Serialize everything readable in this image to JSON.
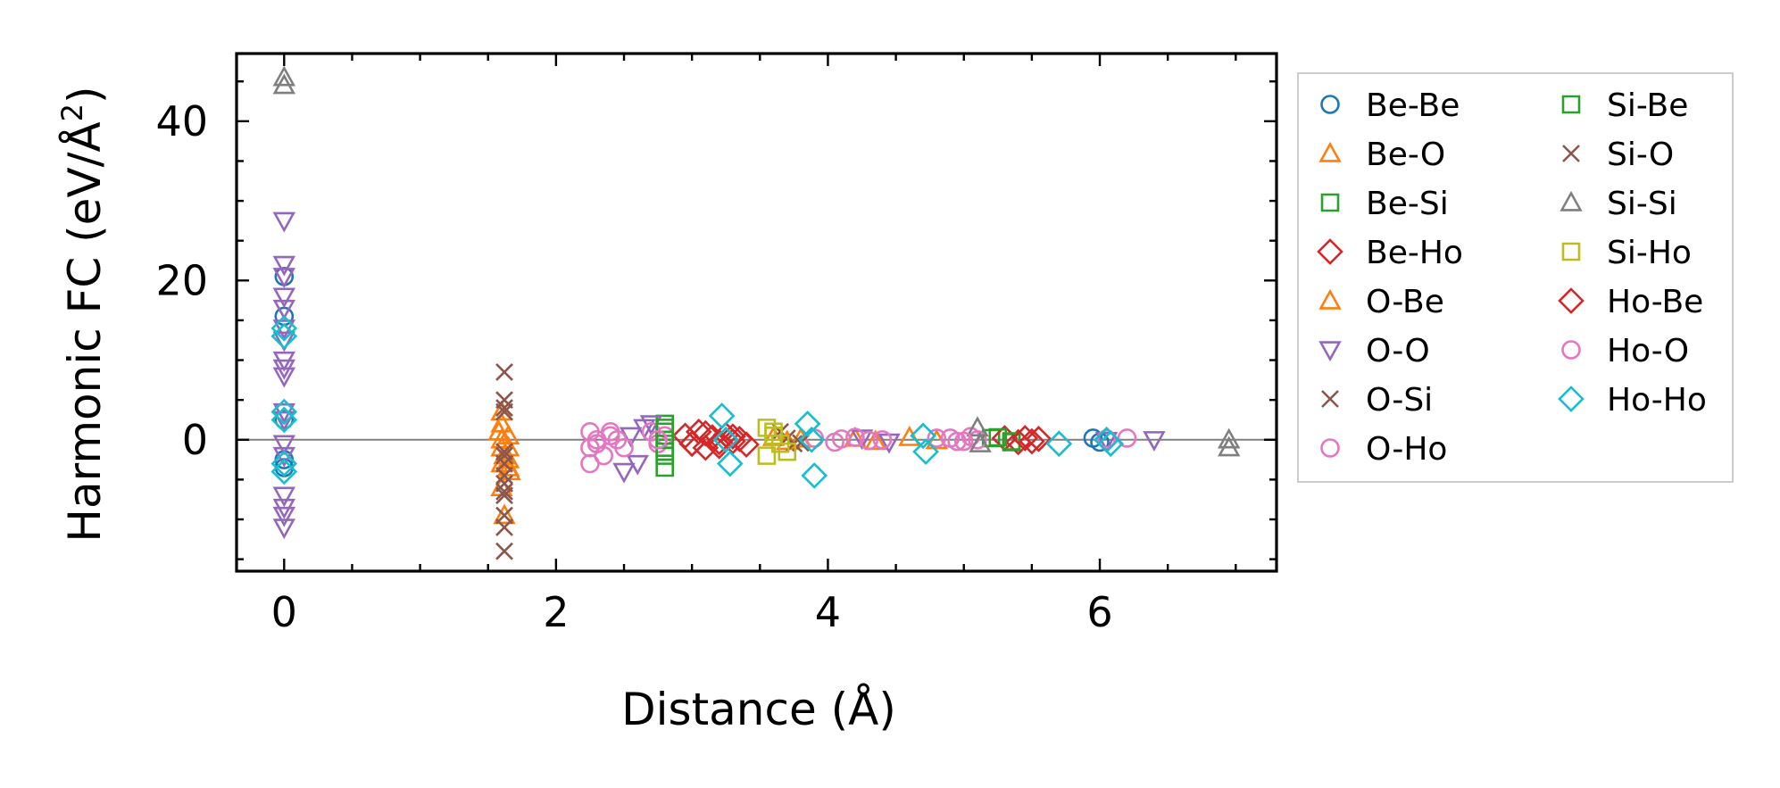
{
  "chart_data": {
    "type": "scatter",
    "xlabel": "Distance (Å)",
    "ylabel": "Harmonic FC (eV/Å²)",
    "ylabel_base": "Harmonic FC (eV/Å",
    "ylabel_sup": "2",
    "ylabel_tail": ")",
    "xlim": [
      -0.35,
      7.3
    ],
    "ylim": [
      -16.5,
      48.5
    ],
    "xticks": [
      0,
      2,
      4,
      6
    ],
    "yticks": [
      0,
      20,
      40
    ],
    "xtick_labels": [
      "0",
      "2",
      "4",
      "6"
    ],
    "ytick_labels": [
      "0",
      "20",
      "40"
    ],
    "x_minor_step": 0.5,
    "y_minor_step": 5,
    "zero_line": true,
    "grid": false,
    "legend": {
      "placement": "outside-right",
      "columns": 2
    },
    "series": [
      {
        "name": "Be-Be",
        "marker": "circle",
        "color": "#1f77b4",
        "x": [
          0,
          0,
          0,
          0,
          0,
          5.95,
          6.0
        ],
        "y": [
          20.5,
          15.5,
          2.5,
          -2.5,
          -3.5,
          0.2,
          -0.3
        ]
      },
      {
        "name": "Be-O",
        "marker": "triangle-up",
        "color": "#ff7f0e",
        "x": [
          1.6,
          1.6,
          1.6,
          1.6,
          1.6,
          1.65,
          1.65,
          1.65,
          1.65,
          1.62,
          4.2,
          4.35,
          4.6,
          4.8
        ],
        "y": [
          3.5,
          2.0,
          -1.0,
          -3.0,
          -6.0,
          0.5,
          -1.0,
          -2.5,
          -3.5,
          -9.5,
          0.2,
          -0.2,
          0.3,
          -0.1
        ]
      },
      {
        "name": "Be-Si",
        "marker": "square",
        "color": "#2ca02c",
        "x": [
          2.8,
          2.8,
          2.8,
          2.8,
          2.8,
          2.8,
          5.2,
          5.35
        ],
        "y": [
          2.0,
          1.0,
          0.0,
          -1.0,
          -2.0,
          -3.5,
          0.2,
          -0.3
        ]
      },
      {
        "name": "Be-Ho",
        "marker": "diamond",
        "color": "#d62728",
        "x": [
          2.95,
          3.0,
          3.05,
          3.1,
          3.15,
          3.2,
          3.25,
          3.3,
          3.35,
          3.4,
          5.3,
          5.4,
          5.55
        ],
        "y": [
          0.5,
          -0.5,
          1.0,
          -1.0,
          0.3,
          -0.8,
          0.6,
          -0.2,
          0.1,
          -0.6,
          0.2,
          -0.3,
          0.1
        ]
      },
      {
        "name": "O-Be",
        "marker": "triangle-up",
        "color": "#ff7f0e",
        "x": [
          1.58,
          1.62,
          1.66,
          1.6,
          3.6,
          3.7,
          3.8
        ],
        "y": [
          1.0,
          -2.0,
          -4.0,
          0.0,
          0.3,
          -0.2,
          0.1
        ]
      },
      {
        "name": "O-O",
        "marker": "triangle-down",
        "color": "#9467bd",
        "x": [
          0,
          0,
          0,
          0,
          0,
          0,
          0,
          0,
          0,
          0,
          0,
          0,
          0,
          0,
          0,
          0,
          0,
          0,
          2.5,
          2.55,
          2.6,
          2.65,
          2.7,
          4.25,
          4.45,
          6.05,
          6.4
        ],
        "y": [
          27.5,
          22.0,
          20.5,
          18.0,
          16.5,
          14.0,
          12.5,
          10.0,
          9.0,
          8.0,
          3.5,
          2.5,
          -0.5,
          -2.0,
          -7.0,
          -8.5,
          -9.5,
          -11.0,
          -4.0,
          0.5,
          -3.0,
          1.5,
          2.0,
          0.2,
          -0.3,
          -0.1,
          0.0
        ]
      },
      {
        "name": "O-Si",
        "marker": "x",
        "color": "#8c564b",
        "x": [
          1.62,
          1.62,
          1.62,
          1.62,
          1.62,
          1.62,
          1.62,
          1.62,
          1.62,
          1.62,
          1.62,
          3.65,
          3.75
        ],
        "y": [
          8.5,
          5.0,
          4.0,
          -1.5,
          -3.0,
          -4.5,
          -5.5,
          -7.0,
          -9.5,
          -11.0,
          -14.0,
          1.0,
          -0.5
        ]
      },
      {
        "name": "O-Ho",
        "marker": "circle",
        "color": "#e377c2",
        "x": [
          2.25,
          2.25,
          2.25,
          2.3,
          2.35,
          2.4,
          2.45,
          2.7,
          2.75,
          2.8,
          3.9,
          4.05,
          4.2,
          4.4,
          4.8,
          4.95,
          5.05,
          5.1
        ],
        "y": [
          1.0,
          -1.0,
          -3.0,
          0.0,
          -2.0,
          1.0,
          0.0,
          1.0,
          -0.5,
          0.5,
          0.2,
          -0.3,
          0.3,
          0.0,
          0.2,
          -0.2,
          0.4,
          0.0
        ]
      },
      {
        "name": "Si-Be",
        "marker": "square",
        "color": "#2ca02c",
        "x": [
          2.8,
          2.8,
          2.8,
          5.25,
          5.35
        ],
        "y": [
          1.5,
          0.0,
          -1.5,
          0.3,
          -0.2
        ]
      },
      {
        "name": "Si-O",
        "marker": "x",
        "color": "#8c564b",
        "x": [
          1.62,
          1.62,
          1.62,
          3.7,
          3.8
        ],
        "y": [
          3.5,
          -2.0,
          -6.5,
          0.2,
          -0.4
        ]
      },
      {
        "name": "Si-Si",
        "marker": "triangle-up",
        "color": "#7f7f7f",
        "x": [
          0,
          0,
          5.1,
          5.12,
          6.95,
          6.95
        ],
        "y": [
          45.5,
          44.5,
          1.5,
          -0.5,
          0.0,
          -1.0
        ]
      },
      {
        "name": "Si-Ho",
        "marker": "square",
        "color": "#bcbd22",
        "x": [
          3.55,
          3.6,
          3.65,
          3.7,
          3.55,
          3.6
        ],
        "y": [
          1.5,
          0.5,
          -0.5,
          -1.5,
          -2.0,
          1.0
        ]
      },
      {
        "name": "Ho-Be",
        "marker": "diamond",
        "color": "#d62728",
        "x": [
          3.0,
          3.1,
          3.2,
          3.3,
          5.45,
          5.5
        ],
        "y": [
          -0.5,
          0.8,
          -0.3,
          0.4,
          0.2,
          -0.2
        ]
      },
      {
        "name": "Ho-O",
        "marker": "circle",
        "color": "#e377c2",
        "x": [
          2.3,
          2.4,
          2.5,
          2.75,
          4.1,
          4.3,
          4.9,
          5.0,
          6.05,
          6.2
        ],
        "y": [
          -0.5,
          0.5,
          -1.0,
          0.0,
          0.1,
          -0.1,
          0.2,
          -0.2,
          0.1,
          0.2
        ]
      },
      {
        "name": "Ho-Ho",
        "marker": "diamond",
        "color": "#17becf",
        "x": [
          0,
          0,
          0,
          0,
          0,
          0,
          3.22,
          3.25,
          3.28,
          3.85,
          3.88,
          3.9,
          4.7,
          4.72,
          5.7,
          6.05,
          6.08
        ],
        "y": [
          14.0,
          13.0,
          3.5,
          2.5,
          -3.0,
          -4.0,
          3.0,
          0.0,
          -3.0,
          2.0,
          0.0,
          -4.5,
          0.5,
          -1.5,
          -0.5,
          0.0,
          -0.5
        ]
      }
    ]
  }
}
